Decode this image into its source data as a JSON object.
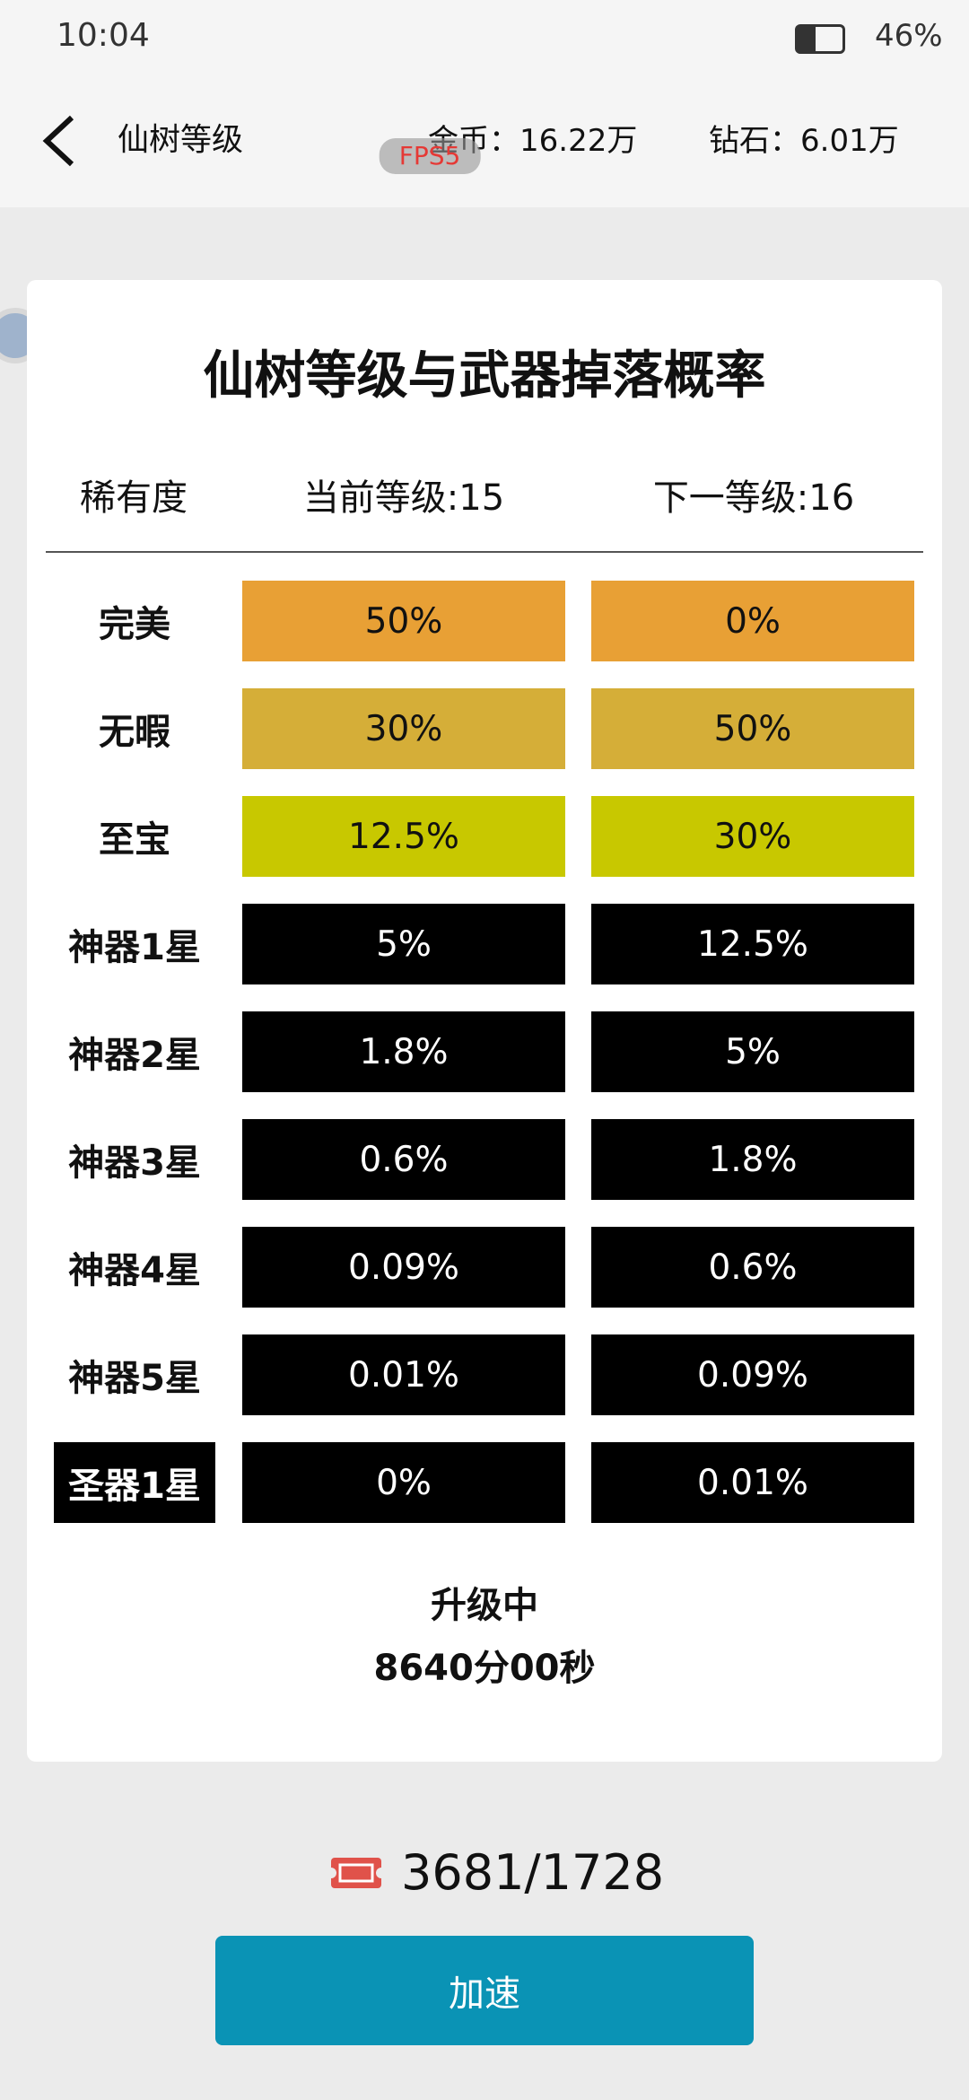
{
  "status_bar": {
    "time": "10:04",
    "battery": "46%"
  },
  "header": {
    "title": "仙树等级",
    "coins": "金币：16.22万",
    "diamonds": "钻石：6.01万",
    "overlay": "FPS5"
  },
  "card": {
    "title": "仙树等级与武器掉落概率",
    "columns": [
      "稀有度",
      "当前等级:15",
      "下一等级:16"
    ],
    "rows": [
      {
        "label": "完美",
        "current": "50%",
        "next": "0%"
      },
      {
        "label": "无暇",
        "current": "30%",
        "next": "50%"
      },
      {
        "label": "至宝",
        "current": "12.5%",
        "next": "30%"
      },
      {
        "label": "神器1星",
        "current": "5%",
        "next": "12.5%"
      },
      {
        "label": "神器2星",
        "current": "1.8%",
        "next": "5%"
      },
      {
        "label": "神器3星",
        "current": "0.6%",
        "next": "1.8%"
      },
      {
        "label": "神器4星",
        "current": "0.09%",
        "next": "0.6%"
      },
      {
        "label": "神器5星",
        "current": "0.01%",
        "next": "0.09%"
      },
      {
        "label": "圣器1星",
        "current": "0%",
        "next": "0.01%"
      }
    ],
    "status": "升级中",
    "timer": "8640分00秒"
  },
  "tickets": "3681/1728",
  "button": "加速"
}
